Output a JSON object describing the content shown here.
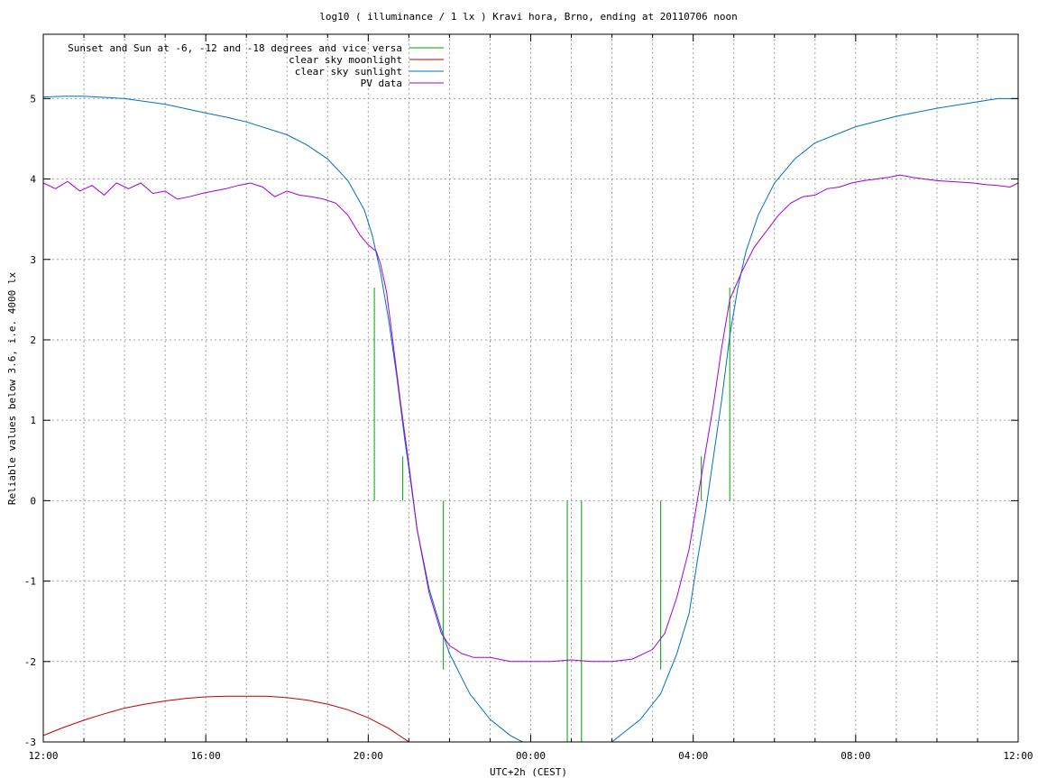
{
  "chart_data": {
    "type": "line",
    "title": "log10 ( illuminance / 1 lx ) Kravi hora, Brno, ending at 20110706 noon",
    "xlabel": "UTC+2h (CEST)",
    "ylabel": "Reliable values below 3.6, i.e. 4000 lx",
    "x_unit": "hours since 12:00",
    "xlim": [
      0,
      24
    ],
    "ylim": [
      -3,
      5.8
    ],
    "x_ticks": [
      {
        "value": 0,
        "label": "12:00"
      },
      {
        "value": 4,
        "label": "16:00"
      },
      {
        "value": 8,
        "label": "20:00"
      },
      {
        "value": 12,
        "label": "00:00"
      },
      {
        "value": 16,
        "label": "04:00"
      },
      {
        "value": 20,
        "label": "08:00"
      },
      {
        "value": 24,
        "label": "12:00"
      }
    ],
    "y_ticks": [
      {
        "value": -3,
        "label": "-3"
      },
      {
        "value": -2,
        "label": "-2"
      },
      {
        "value": -1,
        "label": "-1"
      },
      {
        "value": 0,
        "label": "0"
      },
      {
        "value": 1,
        "label": "1"
      },
      {
        "value": 2,
        "label": "2"
      },
      {
        "value": 3,
        "label": "3"
      },
      {
        "value": 4,
        "label": "4"
      },
      {
        "value": 5,
        "label": "5"
      }
    ],
    "grid": true,
    "legend_position": "top-left",
    "series": [
      {
        "name": "Sunset and Sun at -6, -12 and -18 degrees and vice versa",
        "color": "#00a000",
        "style": "vertical-lines",
        "segments": [
          {
            "x": 8.15,
            "y0": 0,
            "y1": 2.65
          },
          {
            "x": 8.85,
            "y0": 0,
            "y1": 0.55
          },
          {
            "x": 9.85,
            "y0": -2.1,
            "y1": 0
          },
          {
            "x": 12.9,
            "y0": -3,
            "y1": 0
          },
          {
            "x": 13.25,
            "y0": -3,
            "y1": 0
          },
          {
            "x": 15.2,
            "y0": -2.1,
            "y1": 0
          },
          {
            "x": 16.2,
            "y0": 0,
            "y1": 0.55
          },
          {
            "x": 16.9,
            "y0": 0,
            "y1": 2.65
          }
        ]
      },
      {
        "name": "clear sky moonlight",
        "color": "#c00000",
        "points": [
          [
            0,
            -2.92
          ],
          [
            0.5,
            -2.82
          ],
          [
            1,
            -2.73
          ],
          [
            1.5,
            -2.65
          ],
          [
            2,
            -2.58
          ],
          [
            2.5,
            -2.53
          ],
          [
            3,
            -2.49
          ],
          [
            3.5,
            -2.46
          ],
          [
            4,
            -2.44
          ],
          [
            4.5,
            -2.43
          ],
          [
            5,
            -2.43
          ],
          [
            5.5,
            -2.43
          ],
          [
            6,
            -2.45
          ],
          [
            6.5,
            -2.48
          ],
          [
            7,
            -2.53
          ],
          [
            7.5,
            -2.6
          ],
          [
            8,
            -2.7
          ],
          [
            8.5,
            -2.83
          ],
          [
            9,
            -3.0
          ]
        ]
      },
      {
        "name": "clear sky sunlight",
        "color": "#0070c0",
        "points": [
          [
            0,
            5.02
          ],
          [
            0.5,
            5.03
          ],
          [
            1,
            5.03
          ],
          [
            2,
            5.0
          ],
          [
            3,
            4.93
          ],
          [
            4,
            4.82
          ],
          [
            4.5,
            4.77
          ],
          [
            5,
            4.71
          ],
          [
            6,
            4.55
          ],
          [
            6.5,
            4.42
          ],
          [
            7,
            4.25
          ],
          [
            7.5,
            3.98
          ],
          [
            7.9,
            3.62
          ],
          [
            8.1,
            3.3
          ],
          [
            8.3,
            2.85
          ],
          [
            8.5,
            2.25
          ],
          [
            8.7,
            1.55
          ],
          [
            8.9,
            0.75
          ],
          [
            9.0,
            0.4
          ],
          [
            9.2,
            -0.35
          ],
          [
            9.5,
            -1.1
          ],
          [
            9.8,
            -1.6
          ],
          [
            10.0,
            -1.9
          ],
          [
            10.5,
            -2.4
          ],
          [
            11.0,
            -2.72
          ],
          [
            11.5,
            -2.92
          ],
          [
            11.8,
            -3.0
          ],
          [
            14.0,
            -3.0
          ],
          [
            14.2,
            -2.92
          ],
          [
            14.7,
            -2.72
          ],
          [
            15.2,
            -2.4
          ],
          [
            15.6,
            -1.9
          ],
          [
            15.9,
            -1.4
          ],
          [
            16.1,
            -0.75
          ],
          [
            16.3,
            -0.15
          ],
          [
            16.5,
            0.55
          ],
          [
            16.7,
            1.25
          ],
          [
            16.9,
            2.05
          ],
          [
            17.1,
            2.65
          ],
          [
            17.3,
            3.1
          ],
          [
            17.6,
            3.55
          ],
          [
            18.0,
            3.95
          ],
          [
            18.5,
            4.25
          ],
          [
            19.0,
            4.45
          ],
          [
            20.0,
            4.65
          ],
          [
            21.0,
            4.78
          ],
          [
            22.0,
            4.88
          ],
          [
            23.0,
            4.96
          ],
          [
            23.5,
            5.0
          ],
          [
            24.0,
            5.0
          ]
        ]
      },
      {
        "name": "PV data",
        "color": "#a000e0",
        "points": [
          [
            0,
            3.95
          ],
          [
            0.3,
            3.88
          ],
          [
            0.6,
            3.97
          ],
          [
            0.9,
            3.85
          ],
          [
            1.2,
            3.92
          ],
          [
            1.5,
            3.8
          ],
          [
            1.8,
            3.95
          ],
          [
            2.1,
            3.88
          ],
          [
            2.4,
            3.95
          ],
          [
            2.7,
            3.82
          ],
          [
            3.0,
            3.85
          ],
          [
            3.3,
            3.75
          ],
          [
            3.6,
            3.78
          ],
          [
            3.9,
            3.82
          ],
          [
            4.2,
            3.85
          ],
          [
            4.5,
            3.88
          ],
          [
            4.8,
            3.92
          ],
          [
            5.1,
            3.95
          ],
          [
            5.4,
            3.9
          ],
          [
            5.7,
            3.78
          ],
          [
            6.0,
            3.85
          ],
          [
            6.3,
            3.8
          ],
          [
            6.6,
            3.78
          ],
          [
            6.9,
            3.75
          ],
          [
            7.2,
            3.7
          ],
          [
            7.5,
            3.55
          ],
          [
            7.8,
            3.3
          ],
          [
            8.0,
            3.18
          ],
          [
            8.2,
            3.1
          ],
          [
            8.3,
            2.95
          ],
          [
            8.45,
            2.6
          ],
          [
            8.6,
            2.0
          ],
          [
            8.8,
            1.2
          ],
          [
            9.0,
            0.45
          ],
          [
            9.2,
            -0.35
          ],
          [
            9.5,
            -1.15
          ],
          [
            9.8,
            -1.65
          ],
          [
            10.0,
            -1.8
          ],
          [
            10.3,
            -1.9
          ],
          [
            10.6,
            -1.95
          ],
          [
            11.0,
            -1.95
          ],
          [
            11.5,
            -2.0
          ],
          [
            12.0,
            -2.0
          ],
          [
            12.5,
            -2.0
          ],
          [
            13.0,
            -1.98
          ],
          [
            13.5,
            -2.0
          ],
          [
            14.0,
            -2.0
          ],
          [
            14.5,
            -1.97
          ],
          [
            15.0,
            -1.85
          ],
          [
            15.3,
            -1.65
          ],
          [
            15.6,
            -1.2
          ],
          [
            15.9,
            -0.6
          ],
          [
            16.1,
            0.0
          ],
          [
            16.3,
            0.6
          ],
          [
            16.5,
            1.2
          ],
          [
            16.7,
            1.9
          ],
          [
            16.9,
            2.5
          ],
          [
            17.2,
            2.85
          ],
          [
            17.5,
            3.15
          ],
          [
            17.8,
            3.35
          ],
          [
            18.1,
            3.55
          ],
          [
            18.4,
            3.7
          ],
          [
            18.7,
            3.78
          ],
          [
            19.0,
            3.8
          ],
          [
            19.3,
            3.88
          ],
          [
            19.6,
            3.9
          ],
          [
            19.9,
            3.95
          ],
          [
            20.2,
            3.98
          ],
          [
            20.5,
            4.0
          ],
          [
            20.8,
            4.02
          ],
          [
            21.1,
            4.05
          ],
          [
            21.4,
            4.02
          ],
          [
            21.7,
            4.0
          ],
          [
            22.0,
            3.98
          ],
          [
            22.3,
            3.97
          ],
          [
            22.6,
            3.96
          ],
          [
            22.9,
            3.95
          ],
          [
            23.2,
            3.93
          ],
          [
            23.5,
            3.92
          ],
          [
            23.8,
            3.9
          ],
          [
            24.0,
            3.95
          ]
        ]
      }
    ]
  }
}
